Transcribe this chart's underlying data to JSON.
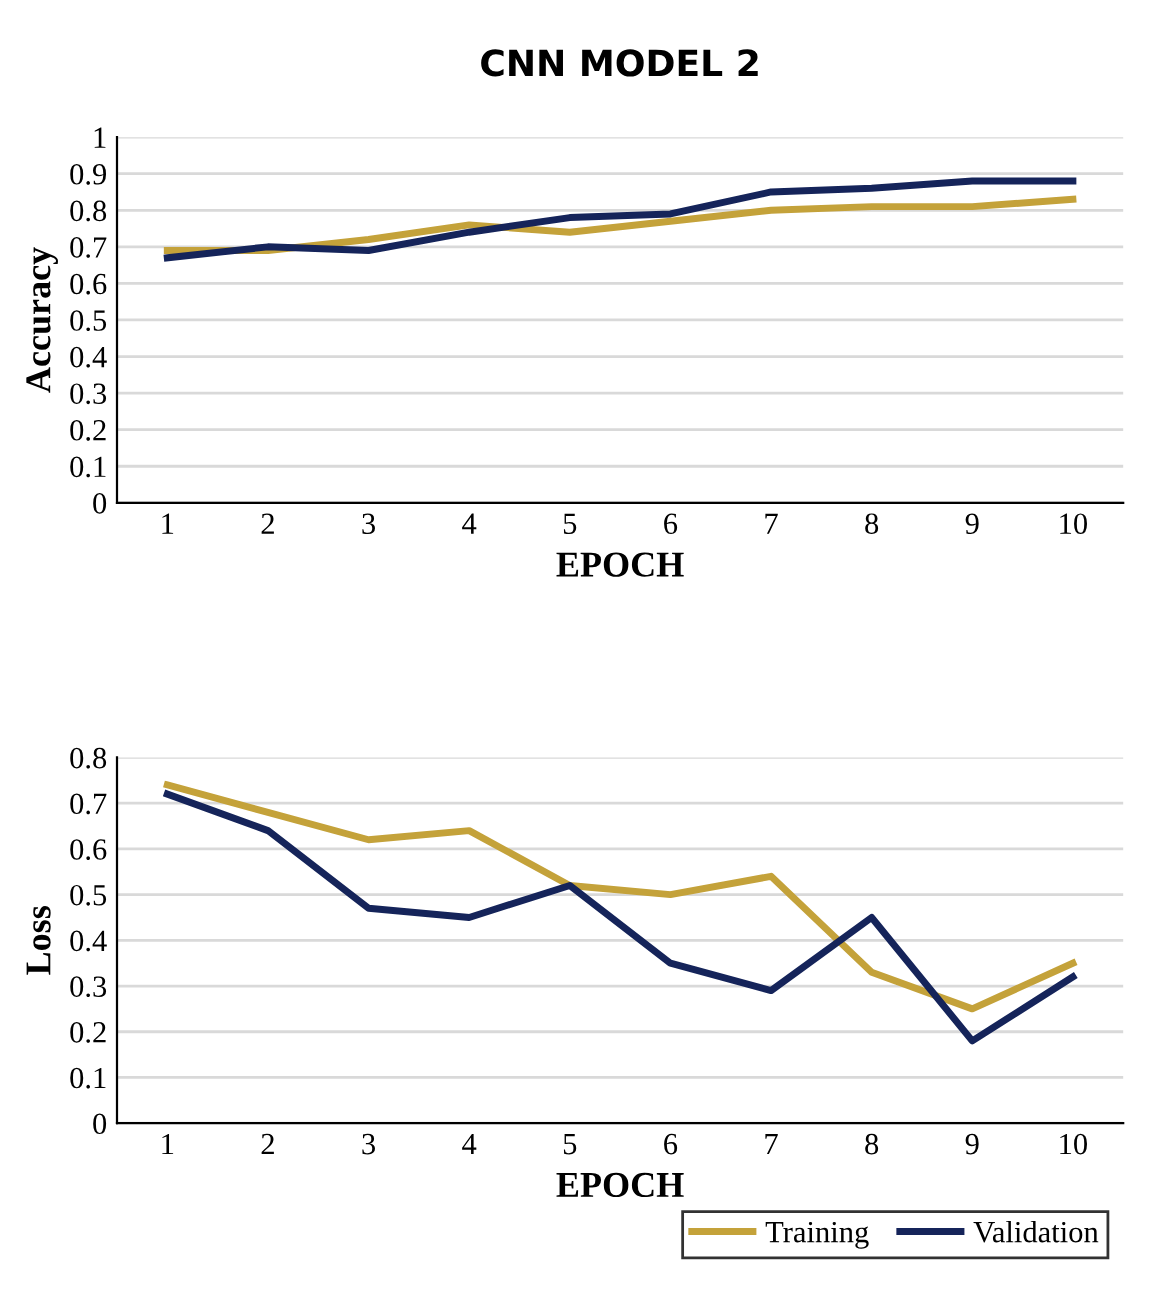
{
  "chart_data": [
    {
      "type": "line",
      "title": "CNN MODEL 2",
      "xlabel": "EPOCH",
      "ylabel": "Accuracy",
      "categories": [
        "1",
        "2",
        "3",
        "4",
        "5",
        "6",
        "7",
        "8",
        "9",
        "10"
      ],
      "series": [
        {
          "color": "#c4a23a",
          "values": [
            0.69,
            0.69,
            0.72,
            0.76,
            0.74,
            0.77,
            0.8,
            0.81,
            0.81,
            0.83
          ]
        },
        {
          "color": "#15245a",
          "values": [
            0.67,
            0.7,
            0.69,
            0.74,
            0.78,
            0.79,
            0.85,
            0.86,
            0.88,
            0.88
          ]
        }
      ],
      "ylim": [
        0,
        1
      ],
      "yticks": [
        0,
        0.1,
        0.2,
        0.3,
        0.4,
        0.5,
        0.6,
        0.7,
        0.8,
        0.9,
        1
      ],
      "grid": "y",
      "legend": false
    },
    {
      "type": "line",
      "xlabel": "EPOCH",
      "ylabel": "Loss",
      "categories": [
        "1",
        "2",
        "3",
        "4",
        "5",
        "6",
        "7",
        "8",
        "9",
        "10"
      ],
      "series": [
        {
          "name": "Training",
          "color": "#c4a23a",
          "values": [
            0.74,
            0.68,
            0.62,
            0.64,
            0.52,
            0.5,
            0.54,
            0.33,
            0.25,
            0.35
          ]
        },
        {
          "name": "Validation",
          "color": "#15245a",
          "values": [
            0.72,
            0.64,
            0.47,
            0.45,
            0.52,
            0.35,
            0.29,
            0.45,
            0.18,
            0.32
          ]
        }
      ],
      "ylim": [
        0,
        0.8
      ],
      "yticks": [
        0,
        0.1,
        0.2,
        0.3,
        0.4,
        0.5,
        0.6,
        0.7,
        0.8
      ],
      "grid": "y",
      "legend": "bottom right"
    }
  ]
}
